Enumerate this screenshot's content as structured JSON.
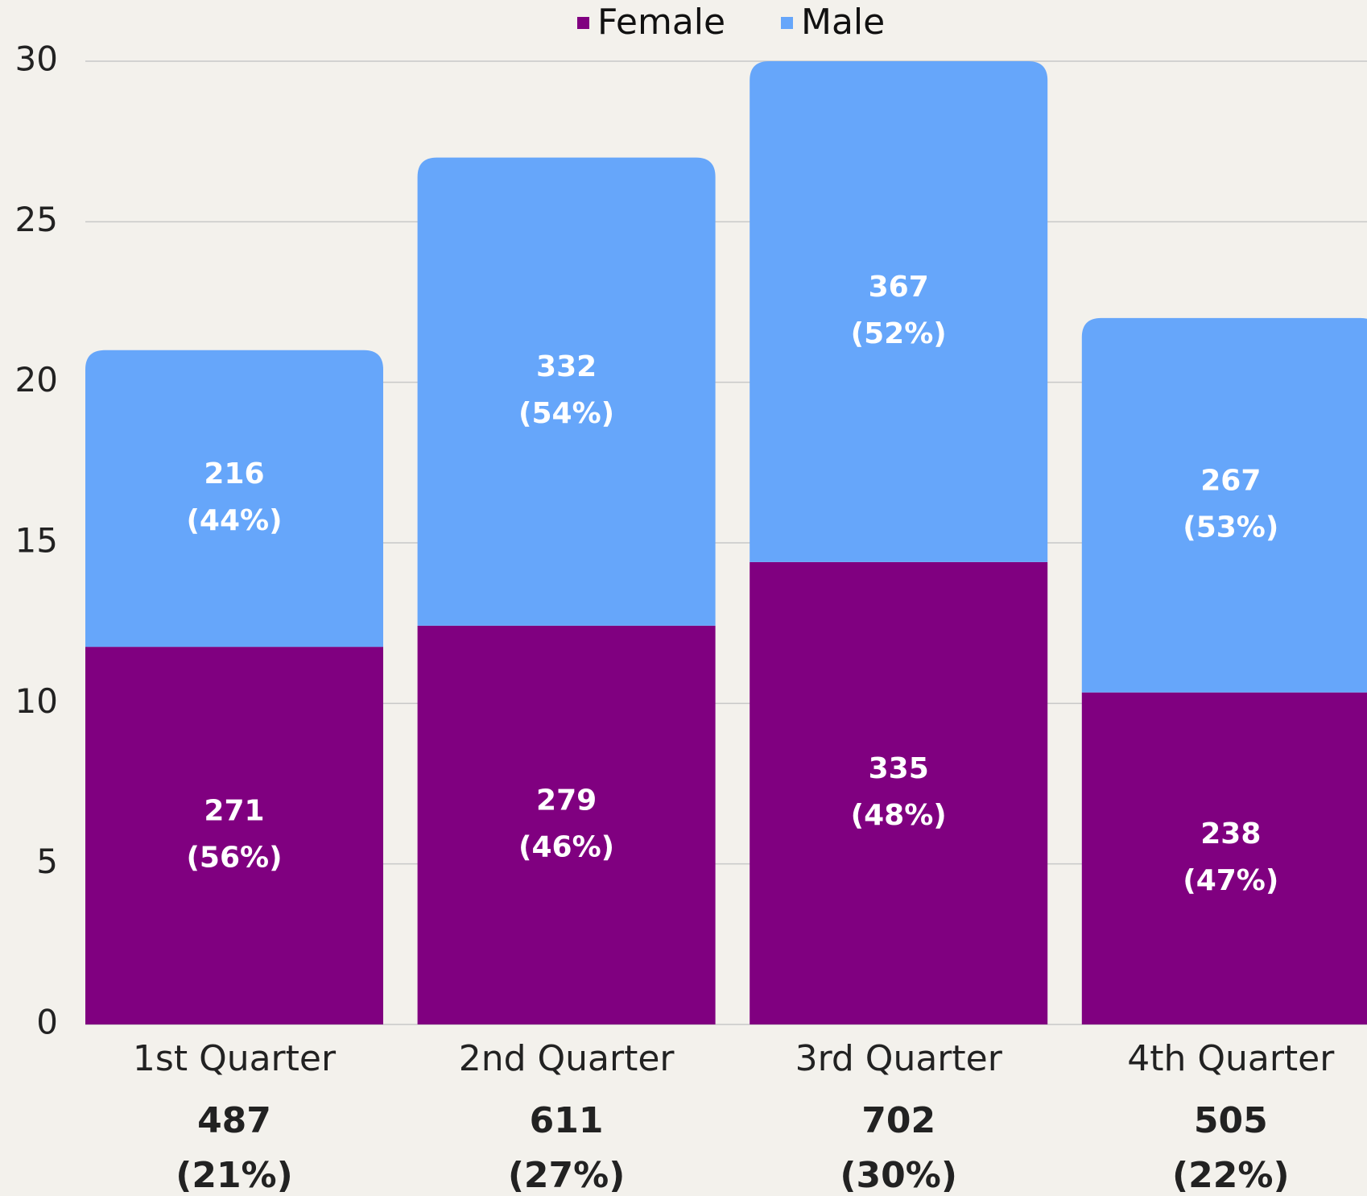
{
  "chart_data": {
    "type": "stacked_bar",
    "categories": [
      "1st Quarter",
      "2nd Quarter",
      "3rd Quarter",
      "4th Quarter"
    ],
    "category_totals": [
      [
        "487",
        "(21%)"
      ],
      [
        "611",
        "(27%)"
      ],
      [
        "702",
        "(30%)"
      ],
      [
        "505",
        "(22%)"
      ]
    ],
    "series": [
      {
        "name": "Female",
        "color": "#800080",
        "values": [
          11.76,
          12.42,
          14.4,
          10.34
        ],
        "labels": [
          [
            "271",
            "(56%)"
          ],
          [
            "279",
            "(46%)"
          ],
          [
            "335",
            "(48%)"
          ],
          [
            "238",
            "(47%)"
          ]
        ]
      },
      {
        "name": "Male",
        "color": "#66a6fa",
        "values": [
          9.24,
          14.58,
          15.6,
          11.66
        ],
        "labels": [
          [
            "216",
            "(44%)"
          ],
          [
            "332",
            "(54%)"
          ],
          [
            "367",
            "(52%)"
          ],
          [
            "267",
            "(53%)"
          ]
        ]
      }
    ],
    "ylim": [
      0,
      30
    ],
    "yticks": [
      0,
      5,
      10,
      15,
      20,
      25,
      30
    ],
    "grid": true,
    "legend": "top"
  }
}
